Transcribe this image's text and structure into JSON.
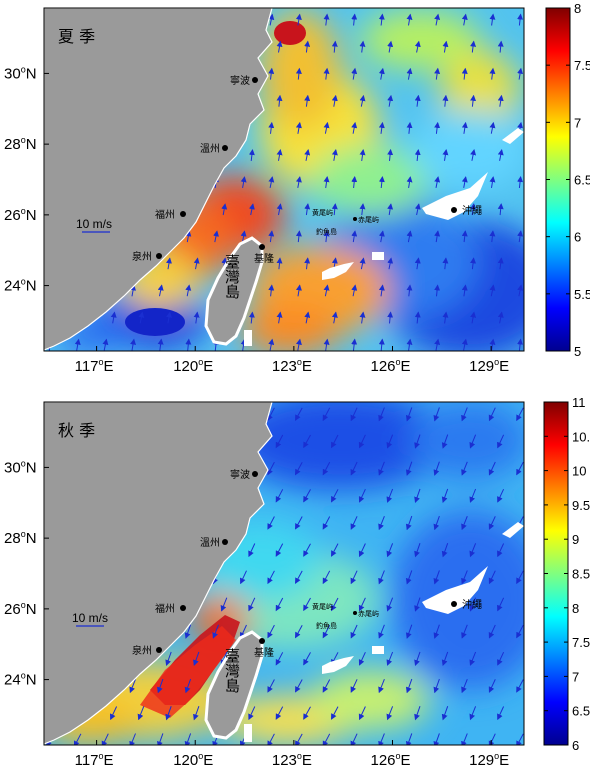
{
  "panels": [
    {
      "season_label": "夏 季",
      "cities": [
        "寧波",
        "溫州",
        "福州",
        "泉州",
        "基隆"
      ],
      "islands": [
        "黄尾屿",
        "赤尾屿",
        "釣魚島"
      ],
      "okinawa": "沖繩",
      "taiwan": "臺灣島",
      "scale_label": "10 m/s",
      "x_ticks": [
        "117",
        "120",
        "123",
        "126",
        "129"
      ],
      "x_suffix": "E",
      "y_ticks": [
        "24",
        "26",
        "28",
        "30"
      ],
      "y_suffix": "N",
      "colorbar_ticks": [
        "8",
        "7.5",
        "7",
        "6.5",
        "6",
        "5.5",
        "5"
      ],
      "colorbar_range": [
        5,
        8
      ],
      "wind_direction": "north-northeast"
    },
    {
      "season_label": "秋 季",
      "cities": [
        "寧波",
        "溫州",
        "福州",
        "泉州",
        "基隆"
      ],
      "islands": [
        "黄尾屿",
        "赤尾屿",
        "釣魚島"
      ],
      "okinawa": "沖繩",
      "taiwan": "臺灣島",
      "scale_label": "10 m/s",
      "x_ticks": [
        "117",
        "120",
        "123",
        "126",
        "129"
      ],
      "x_suffix": "E",
      "y_ticks": [
        "24",
        "26",
        "28",
        "30"
      ],
      "y_suffix": "N",
      "colorbar_ticks": [
        "11",
        "10.5",
        "10",
        "9.5",
        "9",
        "8.5",
        "8",
        "7.5",
        "7",
        "6.5",
        "6"
      ],
      "colorbar_range": [
        6,
        11
      ],
      "wind_direction": "south-southwest"
    }
  ],
  "colors": {
    "land": "#9a9a9a",
    "arrow": "#1a2fd1",
    "colormap": "jet"
  }
}
